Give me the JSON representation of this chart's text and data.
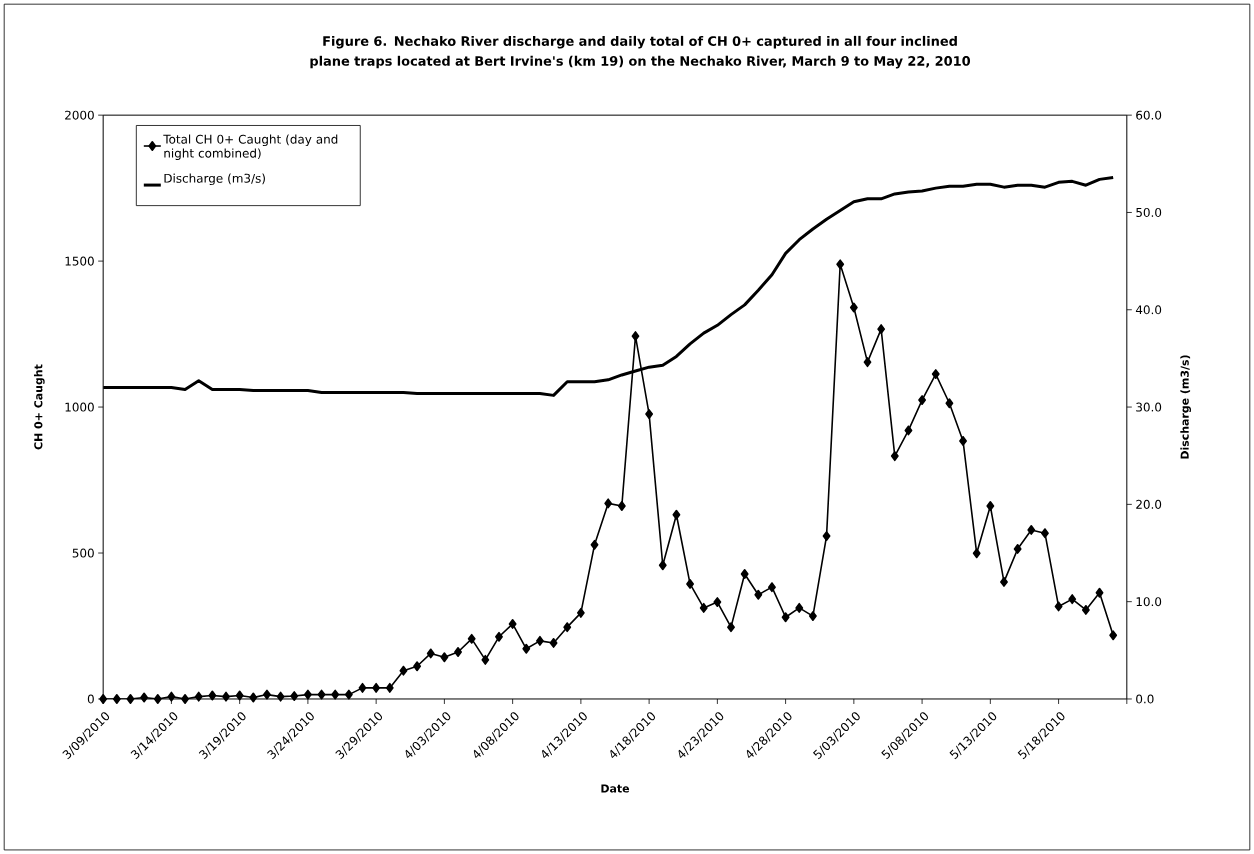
{
  "chart_data": {
    "type": "line",
    "title": "Figure 6. Nechako River discharge and daily total of CH 0+ captured in all four inclined plane traps located at Bert Irvine's (km 19) on the Nechako River, March 9 to May 22, 2010",
    "xlabel": "Date",
    "ylabel": "CH 0+ Caught",
    "y2label": "Discharge (m3/s)",
    "x": [
      "2010-03-09",
      "2010-03-10",
      "2010-03-11",
      "2010-03-12",
      "2010-03-13",
      "2010-03-14",
      "2010-03-15",
      "2010-03-16",
      "2010-03-17",
      "2010-03-18",
      "2010-03-19",
      "2010-03-20",
      "2010-03-21",
      "2010-03-22",
      "2010-03-23",
      "2010-03-24",
      "2010-03-25",
      "2010-03-26",
      "2010-03-27",
      "2010-03-28",
      "2010-03-29",
      "2010-03-30",
      "2010-03-31",
      "2010-04-01",
      "2010-04-02",
      "2010-04-03",
      "2010-04-04",
      "2010-04-05",
      "2010-04-06",
      "2010-04-07",
      "2010-04-08",
      "2010-04-09",
      "2010-04-10",
      "2010-04-11",
      "2010-04-12",
      "2010-04-13",
      "2010-04-14",
      "2010-04-15",
      "2010-04-16",
      "2010-04-17",
      "2010-04-18",
      "2010-04-19",
      "2010-04-20",
      "2010-04-21",
      "2010-04-22",
      "2010-04-23",
      "2010-04-24",
      "2010-04-25",
      "2010-04-26",
      "2010-04-27",
      "2010-04-28",
      "2010-04-29",
      "2010-04-30",
      "2010-05-01",
      "2010-05-02",
      "2010-05-03",
      "2010-05-04",
      "2010-05-05",
      "2010-05-06",
      "2010-05-07",
      "2010-05-08",
      "2010-05-09",
      "2010-05-10",
      "2010-05-11",
      "2010-05-12",
      "2010-05-13",
      "2010-05-14",
      "2010-05-15",
      "2010-05-16",
      "2010-05-17",
      "2010-05-18",
      "2010-05-19",
      "2010-05-20",
      "2010-05-21",
      "2010-05-22"
    ],
    "series": [
      {
        "name": "Total CH 0+ Caught (day and night combined)",
        "color": "#000000",
        "marker": "diamond",
        "values": [
          0,
          0,
          0,
          5,
          0,
          8,
          0,
          8,
          12,
          8,
          12,
          5,
          15,
          8,
          10,
          15,
          15,
          15,
          15,
          38,
          38,
          38,
          97,
          112,
          156,
          143,
          161,
          206,
          134,
          213,
          257,
          172,
          199,
          192,
          246,
          295,
          528,
          670,
          661,
          1243,
          976,
          458,
          631,
          394,
          312,
          332,
          246,
          428,
          357,
          383,
          280,
          312,
          284,
          558,
          1489,
          1341,
          1154,
          1267,
          832,
          920,
          1024,
          1113,
          1013,
          884,
          499,
          661,
          401,
          514,
          579,
          568,
          317,
          342,
          305,
          364,
          218
        ]
      },
      {
        "name": "Discharge (m3/s)",
        "color": "#000000",
        "marker": "none",
        "axis": "y2",
        "values": [
          32.0,
          32.0,
          32.0,
          32.0,
          32.0,
          32.0,
          31.8,
          32.7,
          31.8,
          31.8,
          31.8,
          31.7,
          31.7,
          31.7,
          31.7,
          31.7,
          31.5,
          31.5,
          31.5,
          31.5,
          31.5,
          31.5,
          31.5,
          31.4,
          31.4,
          31.4,
          31.4,
          31.4,
          31.4,
          31.4,
          31.4,
          31.4,
          31.4,
          31.2,
          32.6,
          32.6,
          32.6,
          32.8,
          33.3,
          33.7,
          34.1,
          34.3,
          35.2,
          36.5,
          37.6,
          38.4,
          39.5,
          40.5,
          42.0,
          43.6,
          45.8,
          47.2,
          48.3,
          49.3,
          50.2,
          51.1,
          51.4,
          51.4,
          51.9,
          52.1,
          52.2,
          52.5,
          52.7,
          52.7,
          52.9,
          52.9,
          52.6,
          52.8,
          52.8,
          52.6,
          53.1,
          53.2,
          52.8,
          53.4,
          53.6
        ]
      }
    ],
    "xlim": [
      "2010-03-09",
      "2010-05-23"
    ],
    "xticks": [
      {
        "value": "2010-03-09",
        "label": "3/09/2010"
      },
      {
        "value": "2010-03-14",
        "label": "3/14/2010"
      },
      {
        "value": "2010-03-19",
        "label": "3/19/2010"
      },
      {
        "value": "2010-03-24",
        "label": "3/24/2010"
      },
      {
        "value": "2010-03-29",
        "label": "3/29/2010"
      },
      {
        "value": "2010-04-03",
        "label": "4/03/2010"
      },
      {
        "value": "2010-04-08",
        "label": "4/08/2010"
      },
      {
        "value": "2010-04-13",
        "label": "4/13/2010"
      },
      {
        "value": "2010-04-18",
        "label": "4/18/2010"
      },
      {
        "value": "2010-04-23",
        "label": "4/23/2010"
      },
      {
        "value": "2010-04-28",
        "label": "4/28/2010"
      },
      {
        "value": "2010-05-03",
        "label": "5/03/2010"
      },
      {
        "value": "2010-05-08",
        "label": "5/08/2010"
      },
      {
        "value": "2010-05-13",
        "label": "5/13/2010"
      },
      {
        "value": "2010-05-18",
        "label": "5/18/2010"
      },
      {
        "value": "2010-05-23",
        "label": null
      }
    ],
    "ylim": [
      0,
      2000
    ],
    "yticks": [
      0,
      500,
      1000,
      1500,
      2000
    ],
    "y2lim": [
      0,
      60
    ],
    "y2ticks": [
      {
        "value": 0,
        "label": "0.0"
      },
      {
        "value": 10,
        "label": "10.0"
      },
      {
        "value": 20,
        "label": "20.0"
      },
      {
        "value": 30,
        "label": "30.0"
      },
      {
        "value": 40,
        "label": "40.0"
      },
      {
        "value": 50,
        "label": "50.0"
      },
      {
        "value": 60,
        "label": "60.0"
      }
    ],
    "grid": false,
    "legend": "top left",
    "line_style": "solid"
  }
}
